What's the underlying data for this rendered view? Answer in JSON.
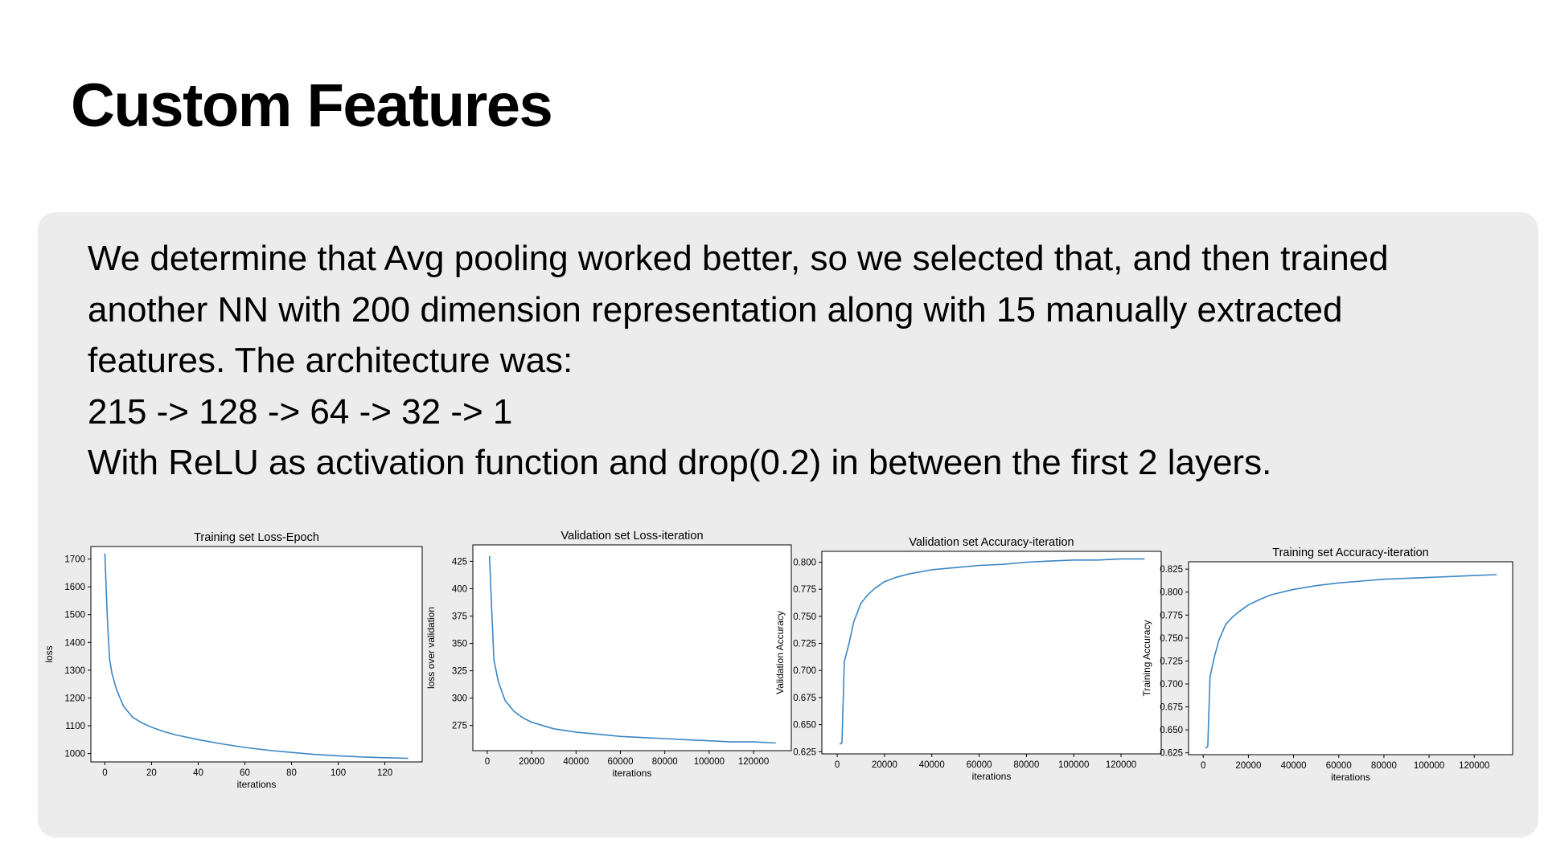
{
  "slide": {
    "title": "Custom Features",
    "body_lines": [
      "We determine that Avg pooling worked better, so we selected that, and then trained",
      "another NN with 200 dimension representation along with 15 manually extracted",
      "features. The architecture was:",
      "215 -> 128 -> 64 -> 32 -> 1",
      "With ReLU as activation function and drop(0.2) in between the first 2 layers."
    ]
  },
  "colors": {
    "line": "#3b86c4",
    "panel": "#ececec"
  },
  "chart_data": [
    {
      "type": "line",
      "title": "Training set Loss-Epoch",
      "xlabel": "iterations",
      "ylabel": "loss",
      "xlim": [
        -6,
        136
      ],
      "ylim": [
        970,
        1745
      ],
      "xticks": [
        0,
        20,
        40,
        60,
        80,
        100,
        120
      ],
      "yticks": [
        1000,
        1100,
        1200,
        1300,
        1400,
        1500,
        1600,
        1700
      ],
      "x": [
        0,
        1,
        2,
        3,
        5,
        8,
        12,
        16,
        20,
        25,
        30,
        40,
        50,
        60,
        70,
        80,
        90,
        100,
        110,
        120,
        130
      ],
      "y": [
        1720,
        1500,
        1340,
        1290,
        1230,
        1170,
        1130,
        1110,
        1095,
        1080,
        1068,
        1050,
        1035,
        1022,
        1012,
        1004,
        997,
        992,
        988,
        985,
        983
      ]
    },
    {
      "type": "line",
      "title": "Validation set Loss-iteration",
      "xlabel": "iterations",
      "ylabel": "loss over validation",
      "xlim": [
        -6500,
        137000
      ],
      "ylim": [
        252,
        440
      ],
      "xticks": [
        0,
        20000,
        40000,
        60000,
        80000,
        100000,
        120000
      ],
      "yticks": [
        275,
        300,
        325,
        350,
        375,
        400,
        425
      ],
      "x": [
        1000,
        2000,
        3000,
        5000,
        8000,
        12000,
        16000,
        20000,
        25000,
        30000,
        40000,
        50000,
        60000,
        70000,
        80000,
        90000,
        100000,
        110000,
        120000,
        130000
      ],
      "y": [
        430,
        380,
        335,
        315,
        298,
        288,
        282,
        278,
        275,
        272,
        269,
        267,
        265,
        264,
        263,
        262,
        261,
        260,
        260,
        259
      ]
    },
    {
      "type": "line",
      "title": "Validation set Accuracy-iteration",
      "xlabel": "iterations",
      "ylabel": "Validation Accuracy",
      "xlim": [
        -6500,
        137000
      ],
      "ylim": [
        0.623,
        0.81
      ],
      "xticks": [
        0,
        20000,
        40000,
        60000,
        80000,
        100000,
        120000
      ],
      "yticks": [
        0.625,
        0.65,
        0.675,
        0.7,
        0.725,
        0.75,
        0.775,
        0.8
      ],
      "x": [
        1000,
        2000,
        3000,
        5000,
        7000,
        10000,
        13000,
        16000,
        20000,
        25000,
        30000,
        40000,
        50000,
        60000,
        70000,
        80000,
        90000,
        100000,
        110000,
        120000,
        130000
      ],
      "y": [
        0.632,
        0.633,
        0.708,
        0.725,
        0.745,
        0.762,
        0.77,
        0.776,
        0.782,
        0.786,
        0.789,
        0.793,
        0.795,
        0.797,
        0.798,
        0.8,
        0.801,
        0.802,
        0.802,
        0.803,
        0.803
      ]
    },
    {
      "type": "line",
      "title": "Training set Accuracy-iteration",
      "xlabel": "iterations",
      "ylabel": "Training Accuracy",
      "xlim": [
        -6500,
        137000
      ],
      "ylim": [
        0.623,
        0.833
      ],
      "xticks": [
        0,
        20000,
        40000,
        60000,
        80000,
        100000,
        120000
      ],
      "yticks": [
        0.625,
        0.65,
        0.675,
        0.7,
        0.725,
        0.75,
        0.775,
        0.8,
        0.825
      ],
      "x": [
        1000,
        2000,
        3000,
        5000,
        7000,
        10000,
        13000,
        16000,
        20000,
        25000,
        30000,
        40000,
        50000,
        60000,
        70000,
        80000,
        90000,
        100000,
        110000,
        120000,
        130000
      ],
      "y": [
        0.63,
        0.632,
        0.708,
        0.73,
        0.748,
        0.765,
        0.773,
        0.779,
        0.786,
        0.792,
        0.797,
        0.803,
        0.807,
        0.81,
        0.812,
        0.814,
        0.815,
        0.816,
        0.817,
        0.818,
        0.819
      ]
    }
  ]
}
